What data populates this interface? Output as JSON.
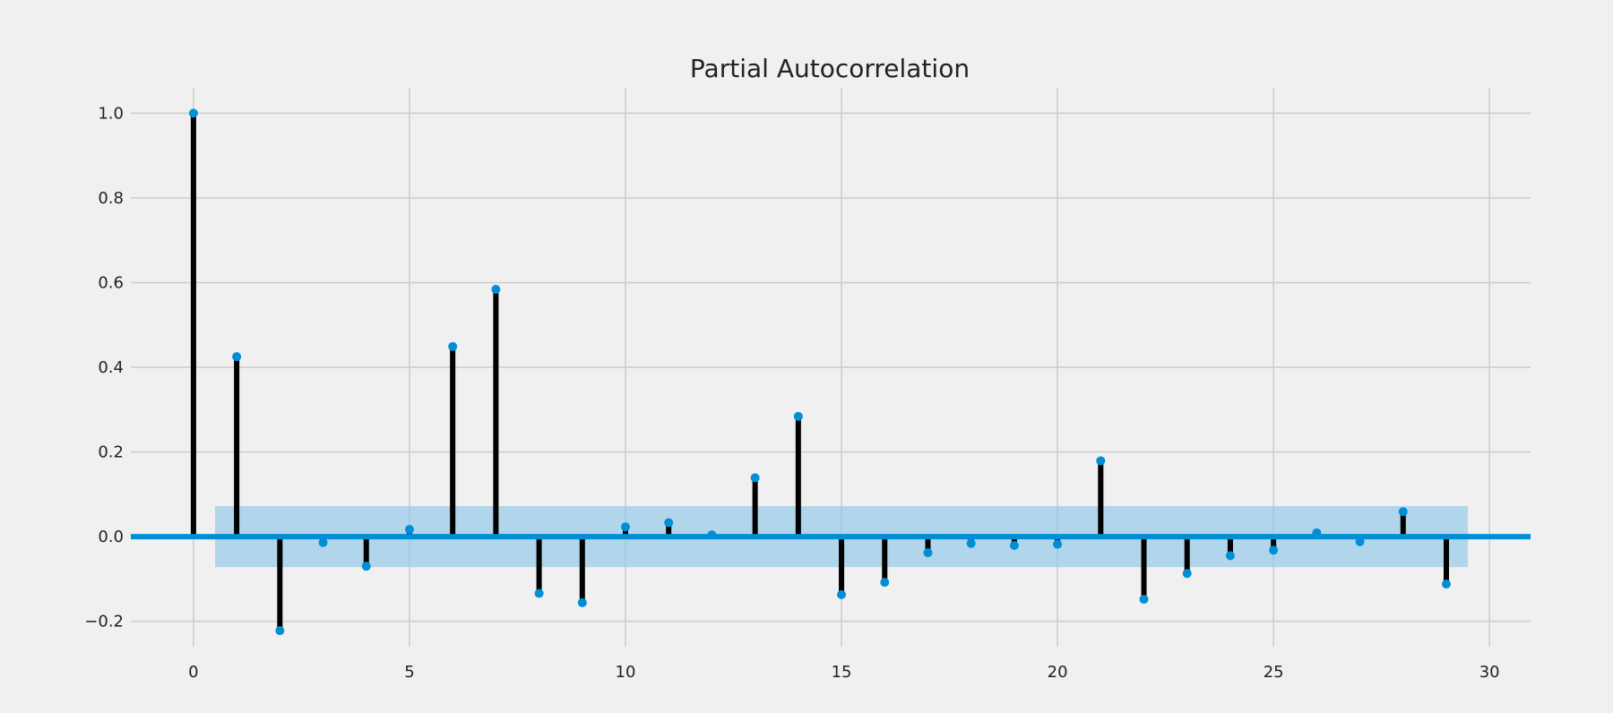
{
  "chart_data": {
    "type": "stem",
    "title": "Partial Autocorrelation",
    "xlabel": "",
    "ylabel": "",
    "xlim": [
      -1.45,
      30.95
    ],
    "ylim": [
      -0.26,
      1.06
    ],
    "x_ticks": [
      0,
      5,
      10,
      15,
      20,
      25,
      30
    ],
    "y_ticks": [
      -0.2,
      0.0,
      0.2,
      0.4,
      0.6,
      0.8,
      1.0
    ],
    "x_tick_labels": [
      "0",
      "5",
      "10",
      "15",
      "20",
      "25",
      "30"
    ],
    "y_tick_labels": [
      "−0.2",
      "0.0",
      "0.2",
      "0.4",
      "0.6",
      "0.8",
      "1.0"
    ],
    "grid": true,
    "lags": [
      0,
      1,
      2,
      3,
      4,
      5,
      6,
      7,
      8,
      9,
      10,
      11,
      12,
      13,
      14,
      15,
      16,
      17,
      18,
      19,
      20,
      21,
      22,
      23,
      24,
      25,
      26,
      27,
      28,
      29
    ],
    "values": [
      1.0,
      0.425,
      -0.222,
      -0.014,
      -0.07,
      0.017,
      0.449,
      0.584,
      -0.134,
      -0.156,
      0.023,
      0.033,
      0.004,
      0.139,
      0.284,
      -0.137,
      -0.108,
      -0.038,
      -0.016,
      -0.021,
      -0.018,
      0.179,
      -0.148,
      -0.087,
      -0.045,
      -0.032,
      0.009,
      -0.012,
      0.059,
      -0.112
    ],
    "confidence_interval": {
      "x_range": [
        0.5,
        29.5
      ],
      "bounds": [
        -0.072,
        0.072
      ]
    },
    "colors": {
      "background": "#f0f0f0",
      "grid": "#cbcbcb",
      "stem": "#000000",
      "marker": "#008fd5",
      "baseline": "#008fd5",
      "confidence_band": "#8fc6e8"
    }
  }
}
